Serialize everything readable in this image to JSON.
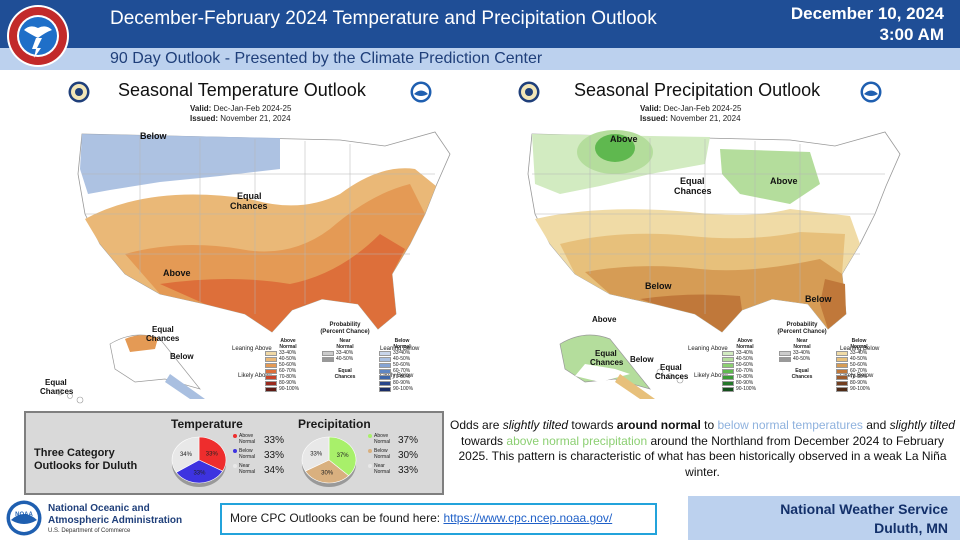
{
  "header": {
    "title": "December-February 2024 Temperature and Precipitation Outlook",
    "date_line1": "December 10, 2024",
    "date_line2": "3:00 AM",
    "subtitle": "90 Day Outlook - Presented by the Climate Prediction Center",
    "logo_text": "NATIONAL WEATHER SERVICE"
  },
  "temperature_map": {
    "title": "Seasonal Temperature Outlook",
    "valid_label": "Valid:",
    "valid_value": "Dec-Jan-Feb 2024-25",
    "issued_label": "Issued:",
    "issued_value": "November 21, 2024",
    "labels": {
      "below_north": "Below",
      "equal_chances": "Equal\nChances",
      "above": "Above",
      "equal_chances_ak": "Equal\nChances",
      "below_ak": "Below",
      "equal_chances_hi": "Equal\nChances"
    },
    "legend": {
      "title": "Probability\n(Percent Chance)",
      "col1": "Above\nNormal",
      "col2": "Near\nNormal",
      "col3": "Below\nNormal",
      "ranges": [
        "33-40%",
        "40-50%",
        "50-60%",
        "60-70%",
        "70-80%",
        "80-90%",
        "90-100%"
      ],
      "near_ranges": [
        "33-40%",
        "40-50%"
      ],
      "leaning_above": "Leaning\nAbove",
      "likely_above": "Likely\nAbove",
      "leaning_below": "Leaning\nBelow",
      "likely_below": "Likely\nBelow",
      "equal_chances": "Equal\nChances",
      "above_colors": [
        "#f0d9a6",
        "#eab877",
        "#e49a55",
        "#dd6f3a",
        "#c9442a",
        "#9a2a1e",
        "#5e1a14"
      ],
      "near_colors": [
        "#cccccc",
        "#999999"
      ],
      "below_colors": [
        "#c8d5ea",
        "#a9bfe0",
        "#86a4d4",
        "#5f86c2",
        "#3d66a9",
        "#27458a",
        "#1a2d66"
      ]
    }
  },
  "precipitation_map": {
    "title": "Seasonal Precipitation Outlook",
    "valid_label": "Valid:",
    "valid_value": "Dec-Jan-Feb 2024-25",
    "issued_label": "Issued:",
    "issued_value": "November 21, 2024",
    "labels": {
      "above_north": "Above",
      "equal_chances": "Equal\nChances",
      "above_gl": "Above",
      "below_south": "Below",
      "below_se": "Below",
      "above_ak": "Above",
      "equal_chances_ak": "Equal\nChances",
      "below_ak": "Below",
      "equal_chances_hi": "Equal\nChances"
    },
    "legend": {
      "title": "Probability\n(Percent Chance)",
      "col1": "Above\nNormal",
      "col2": "Near\nNormal",
      "col3": "Below\nNormal",
      "ranges": [
        "33-40%",
        "40-50%",
        "50-60%",
        "60-70%",
        "70-80%",
        "80-90%",
        "90-100%"
      ],
      "near_ranges": [
        "33-40%",
        "40-50%"
      ],
      "leaning_above": "Leaning\nAbove",
      "likely_above": "Likely\nAbove",
      "leaning_below": "Leaning\nBelow",
      "likely_below": "Likely\nBelow",
      "equal_chances": "Equal\nChances",
      "above_colors": [
        "#d2ebc1",
        "#b4dd9c",
        "#8ccf72",
        "#5fb84f",
        "#3a9b36",
        "#24782a",
        "#154f1c"
      ],
      "near_colors": [
        "#cccccc",
        "#999999"
      ],
      "below_colors": [
        "#f0dba6",
        "#e7c07b",
        "#d69c55",
        "#c0783a",
        "#9c5a2c",
        "#733f20",
        "#4f2b17"
      ]
    }
  },
  "duluth": {
    "label": "Three Category\nOutlooks for Duluth",
    "temperature": {
      "heading": "Temperature",
      "slices": [
        {
          "name": "Above\nNormal",
          "value": 33,
          "color": "#ee2d2d"
        },
        {
          "name": "Below\nNormal",
          "value": 33,
          "color": "#3d33e0"
        },
        {
          "name": "Near\nNormal",
          "value": 34,
          "color": "#e8e8e8"
        }
      ],
      "pct": [
        "33%",
        "33%",
        "34%"
      ],
      "pie_labels": [
        "33%",
        "33%",
        "34%"
      ]
    },
    "precipitation": {
      "heading": "Precipitation",
      "slices": [
        {
          "name": "Above\nNormal",
          "value": 37,
          "color": "#a8f06a"
        },
        {
          "name": "Below\nNormal",
          "value": 30,
          "color": "#d9b07f"
        },
        {
          "name": "Near\nNormal",
          "value": 33,
          "color": "#e8e8e8"
        }
      ],
      "pct": [
        "37%",
        "30%",
        "33%"
      ],
      "pie_labels": [
        "37%",
        "30%",
        "33%"
      ]
    }
  },
  "summary": {
    "p1": "Odds are ",
    "p2": "slightly tilted",
    "p3": " towards ",
    "p4": "around normal",
    "p5": " to ",
    "p6": "below normal temperatures",
    "p7": " and ",
    "p8": "slightly tilted",
    "p9": " towards ",
    "p10": "above normal precipitation",
    "p11": " around the Northland  from December 2024 to February 2025. This pattern is characteristic of what has been historically observed  in a weak La Niña winter."
  },
  "footer": {
    "noaa_name": "National Oceanic and\nAtmospheric Administration",
    "noaa_dept": "U.S. Department of Commerce",
    "cpc_text": "More CPC Outlooks can be found here: ",
    "cpc_link": "https://www.cpc.ncep.noaa.gov/",
    "nws_line1": "National Weather Service",
    "nws_line2": "Duluth, MN"
  }
}
